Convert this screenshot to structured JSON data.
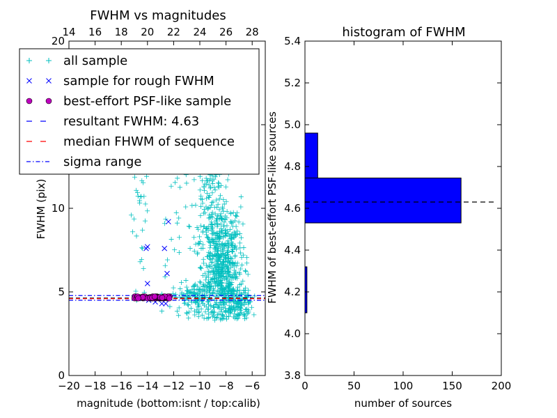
{
  "chart_data": [
    {
      "type": "scatter",
      "title": "FWHM vs magnitudes",
      "xlabel": "magnitude (bottom:isnt / top:calib)",
      "ylabel": "FWHM (pix)",
      "xlim": [
        -20,
        -5
      ],
      "ylim": [
        0,
        20
      ],
      "x_ticks": [
        -20,
        -18,
        -16,
        -14,
        -12,
        -10,
        -8,
        -6
      ],
      "x_tick_labels": [
        "−20",
        "−18",
        "−16",
        "−14",
        "−12",
        "−10",
        "−8",
        "−6"
      ],
      "y_ticks": [
        0,
        5,
        10,
        15,
        20
      ],
      "y_tick_labels": [
        "0",
        "5",
        "10",
        "15",
        "20"
      ],
      "top_axis_ticks": [
        14,
        16,
        18,
        20,
        22,
        24,
        26,
        28
      ],
      "top_axis_tick_labels": [
        "14",
        "16",
        "18",
        "20",
        "22",
        "24",
        "26",
        "28"
      ],
      "top_axis_offset": 34,
      "grid": false,
      "legend_placement": "top-left",
      "legend": [
        {
          "label": "all sample",
          "marker": "plus",
          "color": "#00bfbf"
        },
        {
          "label": "sample for rough FWHM",
          "marker": "x",
          "color": "#0000ff"
        },
        {
          "label": "best-effort PSF-like sample",
          "marker": "circle",
          "color": "#bf00bf"
        },
        {
          "label": "resultant FWHM: 4.63",
          "marker": "dash",
          "color": "#0000ff"
        },
        {
          "label": "median FHWM of sequence",
          "marker": "dash",
          "color": "#ff0000"
        },
        {
          "label": "sigma range",
          "marker": "dashdot",
          "color": "#0000ff"
        }
      ],
      "series": [
        {
          "name": "all sample",
          "marker": "plus",
          "color": "#00bfbf",
          "clusters": [
            {
              "x_mean": -8.4,
              "x_sd": 0.75,
              "y_mean": 6.6,
              "y_sd": 2.0,
              "n": 650
            },
            {
              "x_mean": -9.3,
              "x_sd": 0.6,
              "y_mean": 11.5,
              "y_sd": 2.2,
              "n": 140
            },
            {
              "x_mean": -7.0,
              "x_sd": 0.5,
              "y_mean": 4.4,
              "y_sd": 0.5,
              "n": 120
            },
            {
              "x_mean": -10.5,
              "x_sd": 0.8,
              "y_mean": 4.7,
              "y_sd": 0.45,
              "n": 120
            },
            {
              "x_mean": -14.5,
              "x_sd": 0.4,
              "y_mean": 11.0,
              "y_sd": 3.0,
              "n": 60
            },
            {
              "x_mean": -11.5,
              "x_sd": 0.7,
              "y_mean": 9.0,
              "y_sd": 3.5,
              "n": 30
            }
          ]
        },
        {
          "name": "sample for rough FWHM",
          "marker": "x",
          "color": "#0000ff",
          "points": [
            [
              -12.4,
              9.2
            ],
            [
              -14.0,
              7.7
            ],
            [
              -14.1,
              7.6
            ],
            [
              -12.7,
              7.6
            ],
            [
              -12.5,
              6.1
            ],
            [
              -14.0,
              5.5
            ],
            [
              -12.6,
              4.3
            ],
            [
              -12.9,
              4.3
            ],
            [
              -13.4,
              4.4
            ],
            [
              -13.2,
              4.6
            ],
            [
              -13.9,
              4.5
            ],
            [
              -14.4,
              4.6
            ],
            [
              -14.8,
              4.7
            ]
          ]
        },
        {
          "name": "best-effort PSF-like sample",
          "marker": "circle",
          "color": "#bf00bf",
          "x_range": [
            -15.0,
            -12.3
          ],
          "y_values": [
            4.62,
            4.65,
            4.68,
            4.72
          ],
          "n": 70
        }
      ],
      "reference_lines": [
        {
          "name": "resultant FWHM: 4.63",
          "y": 4.63,
          "style": "dashed",
          "color": "#000000"
        },
        {
          "name": "median FHWM of sequence",
          "y": 4.6,
          "style": "dashed",
          "color": "#ff0000"
        },
        {
          "name": "sigma range",
          "y": 4.5,
          "style": "dashdot",
          "color": "#0000ff"
        },
        {
          "name": "sigma range",
          "y": 4.78,
          "style": "dashdot",
          "color": "#0000ff"
        }
      ]
    },
    {
      "type": "bar",
      "orientation": "horizontal",
      "title": "histogram of FWHM",
      "xlabel": "number of sources",
      "ylabel": "FWHM of best-effort PSF-like sources",
      "xlim": [
        0,
        200
      ],
      "ylim": [
        3.8,
        5.4
      ],
      "x_ticks": [
        0,
        50,
        100,
        150,
        200
      ],
      "x_tick_labels": [
        "0",
        "50",
        "100",
        "150",
        "200"
      ],
      "y_ticks": [
        3.8,
        4.0,
        4.2,
        4.4,
        4.6,
        4.8,
        5.0,
        5.2,
        5.4
      ],
      "y_tick_labels": [
        "3.8",
        "4.0",
        "4.2",
        "4.4",
        "4.6",
        "4.8",
        "5.0",
        "5.2",
        "5.4"
      ],
      "grid": false,
      "bar_color": "#0000ff",
      "bins": [
        {
          "y_low": 4.1,
          "y_high": 4.32,
          "count": 2
        },
        {
          "y_low": 4.53,
          "y_high": 4.745,
          "count": 159
        },
        {
          "y_low": 4.745,
          "y_high": 4.96,
          "count": 13
        }
      ],
      "reference_line": {
        "y": 4.63,
        "style": "dashed",
        "color": "#000000"
      }
    }
  ]
}
